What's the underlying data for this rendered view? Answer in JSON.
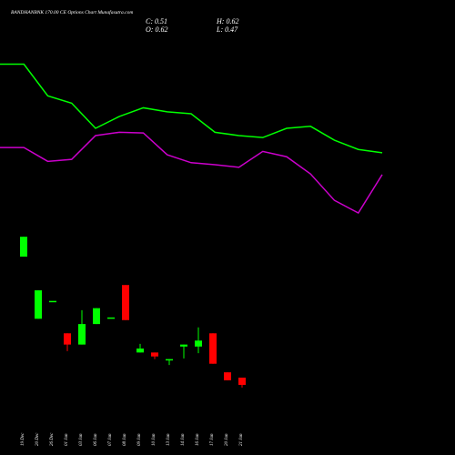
{
  "chart_data": [
    {
      "type": "candlestick",
      "title": "BANDHANBNK 170.00 CE Options Chart Munafasutra.com",
      "info_labels": [
        "C: 0.51",
        "H: 0.62",
        "O: 0.62",
        "L: 0.47"
      ],
      "categories": [
        "19 Dec",
        "20 Dec",
        "26 Dec",
        "01 Jan",
        "03 Jan",
        "06 Jan",
        "07 Jan",
        "08 Jan",
        "09 Jan",
        "10 Jan",
        "13 Jan",
        "14 Jan",
        "16 Jan",
        "17 Jan",
        "20 Jan",
        "21 Jan"
      ],
      "open": [
        2.45,
        1.51,
        1.78,
        1.29,
        1.12,
        1.43,
        1.53,
        2.02,
        1.0,
        1.0,
        0.9,
        1.09,
        1.09,
        1.29,
        0.7,
        0.62
      ],
      "high": [
        2.75,
        1.94,
        1.78,
        1.29,
        1.64,
        1.67,
        1.53,
        2.02,
        1.13,
        1.0,
        0.9,
        1.12,
        1.38,
        1.29,
        0.7,
        0.62
      ],
      "low": [
        2.45,
        1.51,
        1.78,
        1.02,
        1.12,
        1.43,
        1.53,
        1.49,
        1.0,
        0.9,
        0.81,
        0.91,
        0.99,
        0.83,
        0.58,
        0.47
      ],
      "close": [
        2.75,
        1.94,
        1.78,
        1.12,
        1.43,
        1.67,
        1.53,
        1.49,
        1.06,
        0.94,
        0.9,
        1.12,
        1.18,
        0.83,
        0.58,
        0.51
      ],
      "up_color": "#00ff00",
      "down_color": "#ff0000",
      "ylim": [
        -0.55,
        6.33
      ]
    },
    {
      "type": "line",
      "categories": [
        null,
        null,
        null,
        null,
        null,
        null,
        null,
        null,
        null,
        null,
        null,
        null,
        null,
        null,
        null,
        null,
        null
      ],
      "series": [
        {
          "color": "#00ff00",
          "values": [
            5.36,
            5.36,
            4.88,
            4.77,
            4.39,
            4.57,
            4.7,
            4.64,
            4.61,
            4.33,
            4.28,
            4.25,
            4.39,
            4.42,
            4.21,
            4.07,
            4.02
          ]
        },
        {
          "color": "#cc00cc",
          "values": [
            4.1,
            4.1,
            3.89,
            3.92,
            4.28,
            4.33,
            4.32,
            3.99,
            3.87,
            3.84,
            3.8,
            4.04,
            3.96,
            3.7,
            3.3,
            3.11,
            3.69
          ]
        }
      ],
      "ylim": [
        -0.55,
        6.33
      ]
    }
  ]
}
